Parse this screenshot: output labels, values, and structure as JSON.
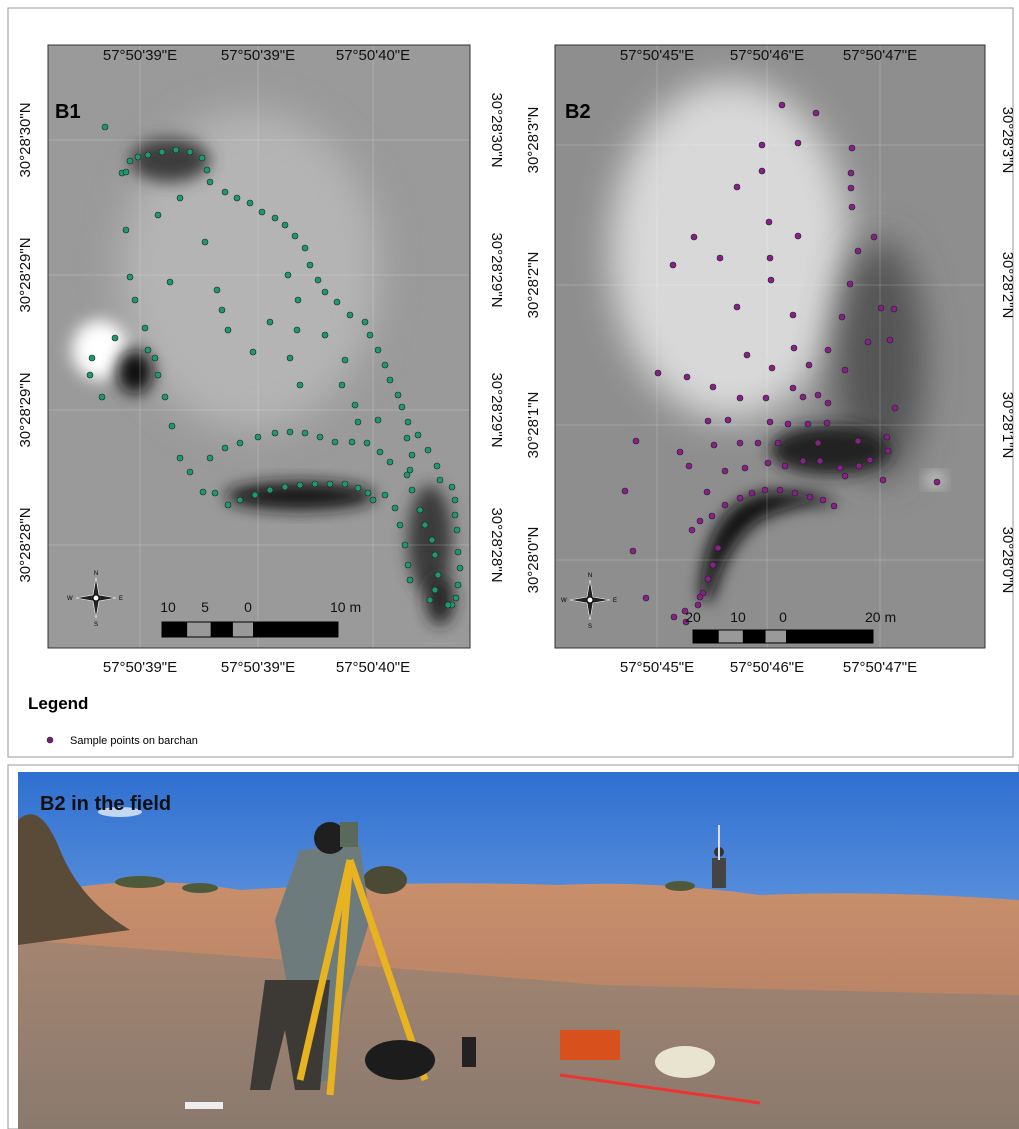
{
  "maps": [
    {
      "label": "B1",
      "top_ticks": [
        "57°50'39\"E",
        "57°50'39\"E",
        "57°50'40\"E"
      ],
      "bottom_ticks": [
        "57°50'39\"E",
        "57°50'39\"E",
        "57°50'40\"E"
      ],
      "left_ticks": [
        "30°28'30\"N",
        "30°28'29\"N",
        "30°28'29\"N",
        "30°28'28\"N"
      ],
      "right_ticks": [
        "30°28'30\"N",
        "30°28'29\"N",
        "30°28'29\"N",
        "30°28'28\"N"
      ],
      "scale_labels": [
        "10",
        "5",
        "0",
        "10 m"
      ]
    },
    {
      "label": "B2",
      "top_ticks": [
        "57°50'45\"E",
        "57°50'46\"E",
        "57°50'47\"E"
      ],
      "bottom_ticks": [
        "57°50'45\"E",
        "57°50'46\"E",
        "57°50'47\"E"
      ],
      "left_ticks": [
        "30°28'3\"N",
        "30°28'2\"N",
        "30°28'1\"N",
        "30°28'0\"N"
      ],
      "right_ticks": [
        "30°28'3\"N",
        "30°28'2\"N",
        "30°28'1\"N",
        "30°28'0\"N"
      ],
      "scale_labels": [
        "20",
        "10",
        "0",
        "20 m"
      ]
    }
  ],
  "compass": {
    "n": "N",
    "s": "S",
    "e": "E",
    "w": "W"
  },
  "legend": {
    "title": "Legend",
    "item": "Sample points on barchan"
  },
  "photo": {
    "caption": "B2 in the field"
  }
}
